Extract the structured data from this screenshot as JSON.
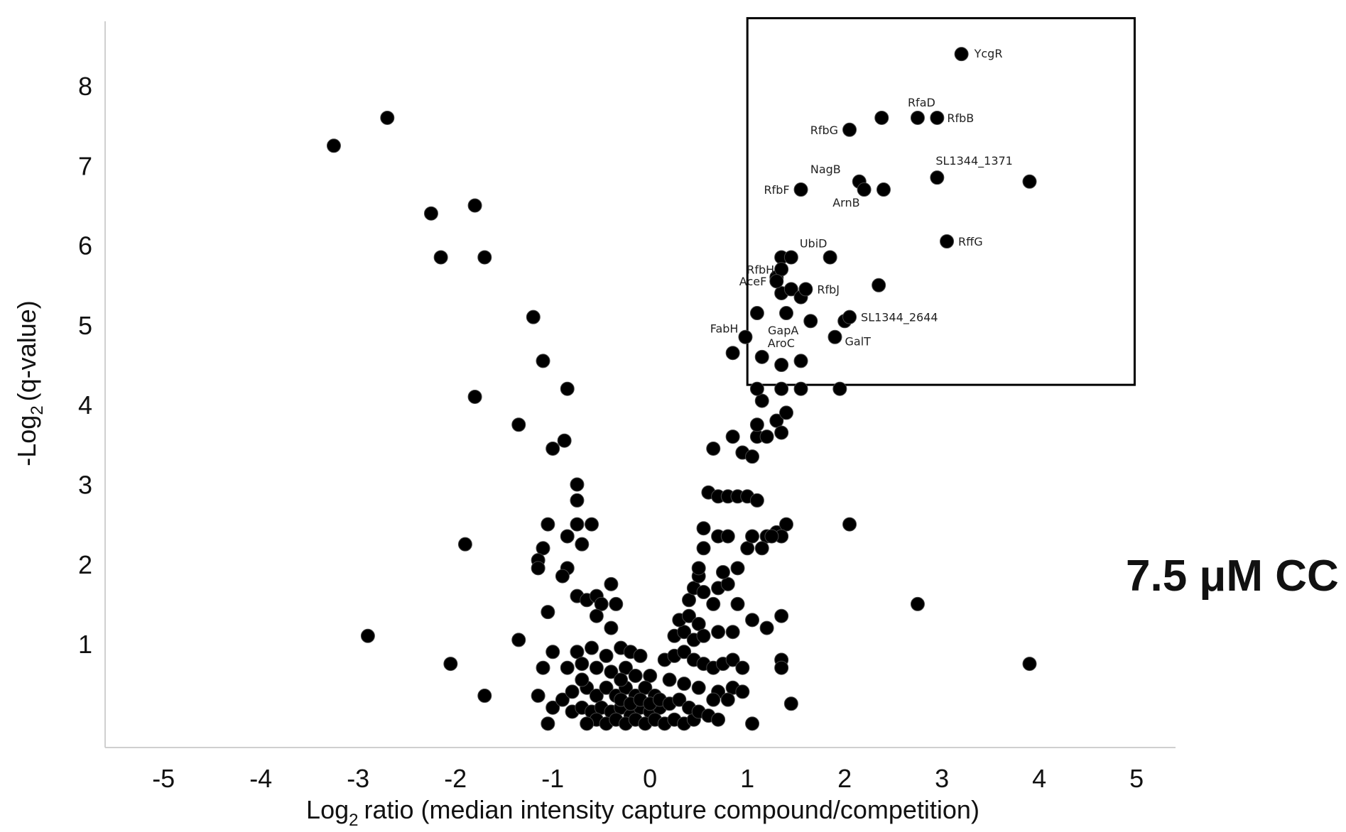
{
  "chart_data": {
    "type": "scatter",
    "condition_label": "7.5 μM CC",
    "xlabel_prefix": "Log",
    "xlabel_sub": "2",
    "xlabel_rest": "ratio (median intensity capture compound/competition)",
    "ylabel_prefix": "-Log",
    "ylabel_sub": "2",
    "ylabel_rest": "(q-value)",
    "xlim": [
      -5.6,
      5.4
    ],
    "ylim": [
      -0.3,
      8.9
    ],
    "x_ticks": [
      -5,
      -4,
      -3,
      -2,
      -1,
      0,
      1,
      2,
      3,
      4,
      5
    ],
    "y_ticks": [
      1,
      2,
      3,
      4,
      5,
      6,
      7,
      8
    ],
    "grid": false,
    "highlight_box": {
      "x": [
        1.0,
        4.98
      ],
      "y": [
        4.25,
        8.85
      ]
    },
    "labeled_points": [
      {
        "label": "YcgR",
        "x": 3.2,
        "y": 8.4
      },
      {
        "label": "RfaD",
        "x": 2.75,
        "y": 7.6
      },
      {
        "label": "RfbB",
        "x": 2.95,
        "y": 7.6
      },
      {
        "label": "RfbG",
        "x": 2.05,
        "y": 7.45
      },
      {
        "label": "SL1344_1371",
        "x": 2.95,
        "y": 6.85
      },
      {
        "label": "NagB",
        "x": 2.15,
        "y": 6.8
      },
      {
        "label": "RfbF",
        "x": 1.55,
        "y": 6.7
      },
      {
        "label": "ArnB",
        "x": 2.2,
        "y": 6.7
      },
      {
        "label": "RffG",
        "x": 3.05,
        "y": 6.05
      },
      {
        "label": "UbiD",
        "x": 1.45,
        "y": 5.85
      },
      {
        "label": "RfbH",
        "x": 1.35,
        "y": 5.7
      },
      {
        "label": "AceF",
        "x": 1.3,
        "y": 5.55
      },
      {
        "label": "RfbJ",
        "x": 1.6,
        "y": 5.45
      },
      {
        "label": "SL1344_2644",
        "x": 2.05,
        "y": 5.1
      },
      {
        "label": "FabH",
        "x": 0.98,
        "y": 4.85
      },
      {
        "label": "GapA",
        "x": 1.4,
        "y": 5.15
      },
      {
        "label": "GalT",
        "x": 1.9,
        "y": 4.85
      },
      {
        "label": "AroC",
        "x": 1.15,
        "y": 4.6
      }
    ],
    "points": [
      [
        -3.25,
        7.25
      ],
      [
        -2.7,
        7.6
      ],
      [
        -2.25,
        6.4
      ],
      [
        -1.8,
        6.5
      ],
      [
        -2.15,
        5.85
      ],
      [
        -1.7,
        5.85
      ],
      [
        -1.2,
        5.1
      ],
      [
        -1.1,
        4.55
      ],
      [
        -1.8,
        4.1
      ],
      [
        -0.85,
        4.2
      ],
      [
        -1.35,
        3.75
      ],
      [
        -1.0,
        3.45
      ],
      [
        -0.88,
        3.55
      ],
      [
        -0.75,
        3.0
      ],
      [
        -0.75,
        2.8
      ],
      [
        -0.75,
        2.5
      ],
      [
        -1.05,
        2.5
      ],
      [
        -0.7,
        2.25
      ],
      [
        -0.85,
        2.35
      ],
      [
        -0.6,
        2.5
      ],
      [
        -1.9,
        2.25
      ],
      [
        -1.1,
        2.2
      ],
      [
        -1.15,
        2.05
      ],
      [
        -1.15,
        1.95
      ],
      [
        -0.85,
        1.95
      ],
      [
        -0.9,
        1.85
      ],
      [
        -0.75,
        1.6
      ],
      [
        -0.65,
        1.55
      ],
      [
        -0.55,
        1.6
      ],
      [
        -0.5,
        1.5
      ],
      [
        -0.4,
        1.75
      ],
      [
        -0.35,
        1.5
      ],
      [
        -1.05,
        1.4
      ],
      [
        -0.55,
        1.35
      ],
      [
        -0.4,
        1.2
      ],
      [
        -2.9,
        1.1
      ],
      [
        -1.35,
        1.05
      ],
      [
        -1.0,
        0.9
      ],
      [
        -0.75,
        0.9
      ],
      [
        -0.6,
        0.95
      ],
      [
        -0.45,
        0.85
      ],
      [
        -0.3,
        0.95
      ],
      [
        -0.2,
        0.9
      ],
      [
        -0.1,
        0.85
      ],
      [
        -1.1,
        0.7
      ],
      [
        -0.85,
        0.7
      ],
      [
        -0.7,
        0.75
      ],
      [
        -0.55,
        0.7
      ],
      [
        -0.4,
        0.65
      ],
      [
        -0.25,
        0.7
      ],
      [
        -0.15,
        0.6
      ],
      [
        0.0,
        0.6
      ],
      [
        -2.05,
        0.75
      ],
      [
        -1.7,
        0.35
      ],
      [
        -1.15,
        0.35
      ],
      [
        -1.0,
        0.2
      ],
      [
        -0.9,
        0.3
      ],
      [
        -0.8,
        0.4
      ],
      [
        -0.65,
        0.45
      ],
      [
        -0.55,
        0.35
      ],
      [
        -0.45,
        0.45
      ],
      [
        -0.35,
        0.35
      ],
      [
        -0.25,
        0.45
      ],
      [
        -0.15,
        0.35
      ],
      [
        -0.05,
        0.45
      ],
      [
        0.05,
        0.35
      ],
      [
        -1.05,
        0.0
      ],
      [
        -0.8,
        0.15
      ],
      [
        -0.7,
        0.2
      ],
      [
        -0.6,
        0.15
      ],
      [
        -0.5,
        0.2
      ],
      [
        -0.4,
        0.15
      ],
      [
        -0.3,
        0.2
      ],
      [
        -0.2,
        0.1
      ],
      [
        -0.1,
        0.2
      ],
      [
        0.0,
        0.15
      ],
      [
        0.1,
        0.2
      ],
      [
        -0.55,
        0.05
      ],
      [
        -0.45,
        0.0
      ],
      [
        -0.35,
        0.05
      ],
      [
        -0.25,
        0.0
      ],
      [
        -0.15,
        0.05
      ],
      [
        -0.05,
        0.0
      ],
      [
        0.05,
        0.05
      ],
      [
        0.15,
        0.0
      ],
      [
        0.25,
        0.05
      ],
      [
        0.35,
        0.0
      ],
      [
        0.45,
        0.05
      ],
      [
        -0.65,
        0.0
      ],
      [
        -0.3,
        0.3
      ],
      [
        -0.2,
        0.25
      ],
      [
        -0.1,
        0.3
      ],
      [
        0.0,
        0.25
      ],
      [
        0.1,
        0.3
      ],
      [
        0.2,
        0.25
      ],
      [
        0.3,
        0.3
      ],
      [
        0.4,
        0.2
      ],
      [
        0.5,
        0.15
      ],
      [
        0.6,
        0.1
      ],
      [
        0.7,
        0.05
      ],
      [
        -0.7,
        0.55
      ],
      [
        -0.3,
        0.55
      ],
      [
        0.2,
        0.55
      ],
      [
        0.35,
        0.5
      ],
      [
        0.5,
        0.45
      ],
      [
        0.7,
        0.4
      ],
      [
        0.85,
        0.45
      ],
      [
        0.95,
        0.4
      ],
      [
        0.8,
        0.3
      ],
      [
        0.65,
        0.3
      ],
      [
        0.15,
        0.8
      ],
      [
        0.25,
        0.85
      ],
      [
        0.35,
        0.9
      ],
      [
        0.45,
        0.8
      ],
      [
        0.55,
        0.75
      ],
      [
        0.65,
        0.7
      ],
      [
        0.75,
        0.75
      ],
      [
        0.85,
        0.8
      ],
      [
        0.95,
        0.7
      ],
      [
        0.25,
        1.1
      ],
      [
        0.35,
        1.15
      ],
      [
        0.45,
        1.05
      ],
      [
        0.3,
        1.3
      ],
      [
        0.4,
        1.35
      ],
      [
        0.5,
        1.25
      ],
      [
        0.55,
        1.1
      ],
      [
        0.7,
        1.15
      ],
      [
        0.85,
        1.15
      ],
      [
        0.4,
        1.55
      ],
      [
        0.45,
        1.7
      ],
      [
        0.5,
        1.85
      ],
      [
        0.55,
        1.65
      ],
      [
        0.65,
        1.5
      ],
      [
        0.7,
        1.7
      ],
      [
        0.8,
        1.75
      ],
      [
        0.9,
        1.5
      ],
      [
        0.5,
        1.95
      ],
      [
        0.55,
        2.2
      ],
      [
        0.7,
        2.35
      ],
      [
        0.75,
        1.9
      ],
      [
        0.9,
        1.95
      ],
      [
        0.55,
        2.45
      ],
      [
        0.8,
        2.35
      ],
      [
        1.0,
        2.2
      ],
      [
        1.05,
        1.3
      ],
      [
        1.2,
        1.2
      ],
      [
        1.35,
        1.35
      ],
      [
        1.35,
        0.8
      ],
      [
        1.35,
        0.7
      ],
      [
        1.45,
        0.25
      ],
      [
        1.05,
        0.0
      ],
      [
        0.6,
        2.9
      ],
      [
        0.7,
        2.85
      ],
      [
        0.8,
        2.85
      ],
      [
        0.9,
        2.85
      ],
      [
        1.0,
        2.85
      ],
      [
        1.1,
        2.8
      ],
      [
        1.05,
        2.35
      ],
      [
        1.2,
        2.35
      ],
      [
        1.3,
        2.4
      ],
      [
        1.4,
        2.5
      ],
      [
        1.35,
        2.35
      ],
      [
        1.15,
        2.2
      ],
      [
        1.25,
        2.35
      ],
      [
        2.05,
        2.5
      ],
      [
        2.75,
        1.5
      ],
      [
        3.9,
        0.75
      ],
      [
        0.65,
        3.45
      ],
      [
        0.85,
        3.6
      ],
      [
        0.95,
        3.4
      ],
      [
        1.05,
        3.35
      ],
      [
        1.1,
        3.6
      ],
      [
        1.2,
        3.6
      ],
      [
        1.1,
        3.75
      ],
      [
        1.3,
        3.8
      ],
      [
        1.35,
        3.65
      ],
      [
        1.4,
        3.9
      ],
      [
        1.15,
        4.05
      ],
      [
        1.35,
        4.2
      ],
      [
        1.55,
        4.2
      ],
      [
        1.95,
        4.2
      ],
      [
        1.1,
        4.2
      ],
      [
        0.85,
        4.65
      ],
      [
        1.35,
        4.5
      ],
      [
        1.55,
        4.55
      ],
      [
        1.1,
        5.15
      ],
      [
        1.35,
        5.4
      ],
      [
        1.45,
        5.45
      ],
      [
        1.55,
        5.35
      ],
      [
        1.3,
        5.6
      ],
      [
        1.35,
        5.85
      ],
      [
        1.65,
        5.05
      ],
      [
        1.85,
        5.85
      ],
      [
        2.35,
        5.5
      ],
      [
        2.0,
        5.05
      ],
      [
        2.4,
        6.7
      ],
      [
        2.38,
        7.6
      ],
      [
        3.9,
        6.8
      ]
    ]
  }
}
